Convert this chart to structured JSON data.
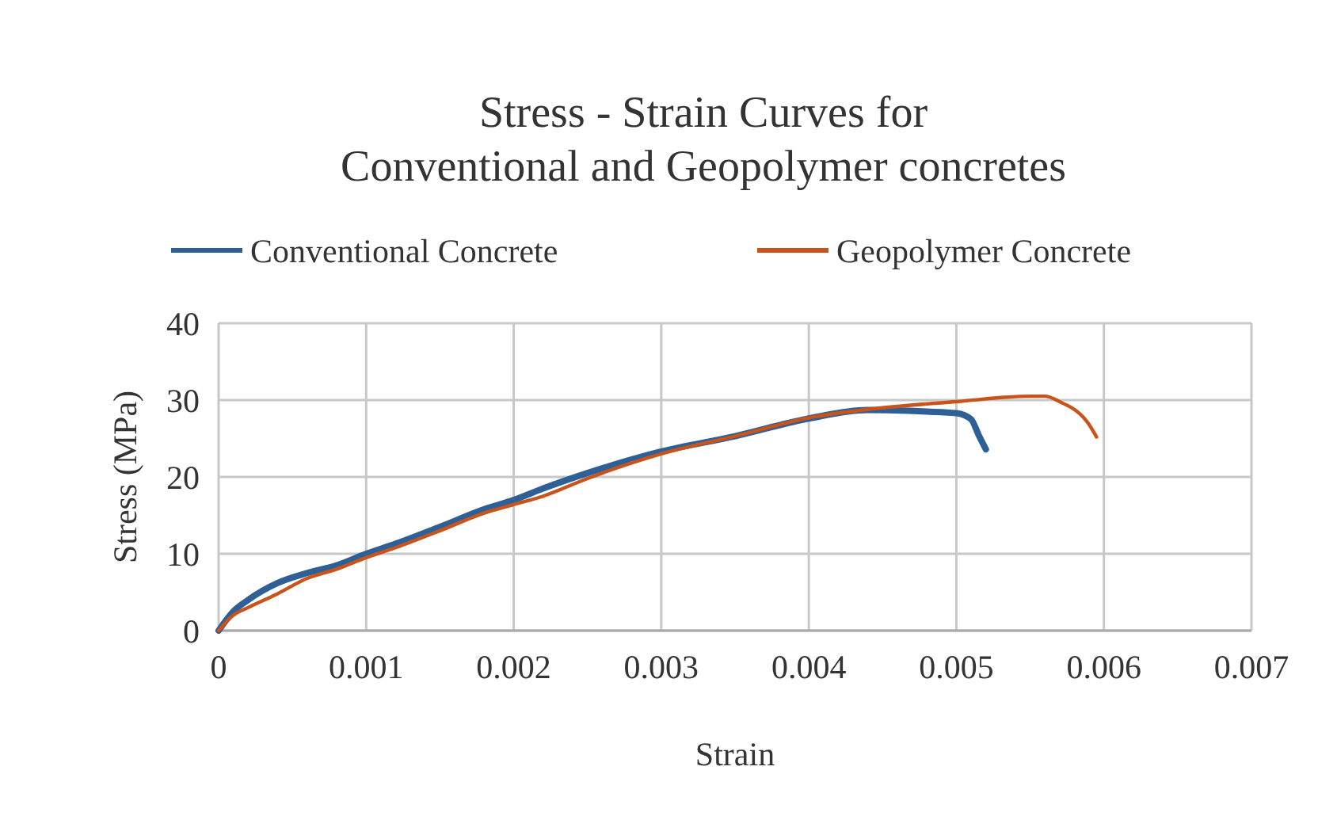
{
  "chart_data": {
    "type": "line",
    "title": "Stress - Strain Curves for\nConventional and Geopolymer concretes",
    "xlabel": "Strain",
    "ylabel": "Stress (MPa)",
    "xlim": [
      0,
      0.007
    ],
    "xticks": [
      0,
      0.001,
      0.002,
      0.003,
      0.004,
      0.005,
      0.006,
      0.007
    ],
    "ylim": [
      0,
      40
    ],
    "yticks": [
      0,
      10,
      20,
      30,
      40
    ],
    "grid": true,
    "legend": "top",
    "line_style": "solid",
    "series": [
      {
        "name": "Conventional Concrete",
        "color": "#2e6096",
        "x": [
          0,
          0.0001,
          0.0002,
          0.0004,
          0.0006,
          0.0008,
          0.001,
          0.0012,
          0.0015,
          0.0018,
          0.002,
          0.0022,
          0.0025,
          0.003,
          0.0035,
          0.004,
          0.0044,
          0.0048,
          0.005,
          0.0051,
          0.00515,
          0.0052
        ],
        "values": [
          0,
          2.5,
          4,
          6.2,
          7.5,
          8.5,
          10,
          11.3,
          13.5,
          15.8,
          17,
          18.5,
          20.5,
          23.3,
          25.3,
          27.6,
          28.7,
          28.5,
          28.3,
          27.5,
          25.5,
          23.6
        ]
      },
      {
        "name": "Geopolymer Concrete",
        "color": "#c8541c",
        "x": [
          0,
          0.0001,
          0.0002,
          0.0004,
          0.0006,
          0.0008,
          0.001,
          0.0012,
          0.0015,
          0.0018,
          0.002,
          0.0022,
          0.0025,
          0.003,
          0.0035,
          0.004,
          0.0045,
          0.005,
          0.0055,
          0.0056,
          0.0057,
          0.0059,
          0.00595
        ],
        "values": [
          0,
          2,
          3,
          4.8,
          6.8,
          8,
          9.5,
          10.8,
          13,
          15.3,
          16.4,
          17.5,
          19.8,
          23,
          25.3,
          27.7,
          29,
          29.8,
          30.5,
          30.5,
          29.8,
          26.8,
          25.2
        ]
      }
    ]
  }
}
